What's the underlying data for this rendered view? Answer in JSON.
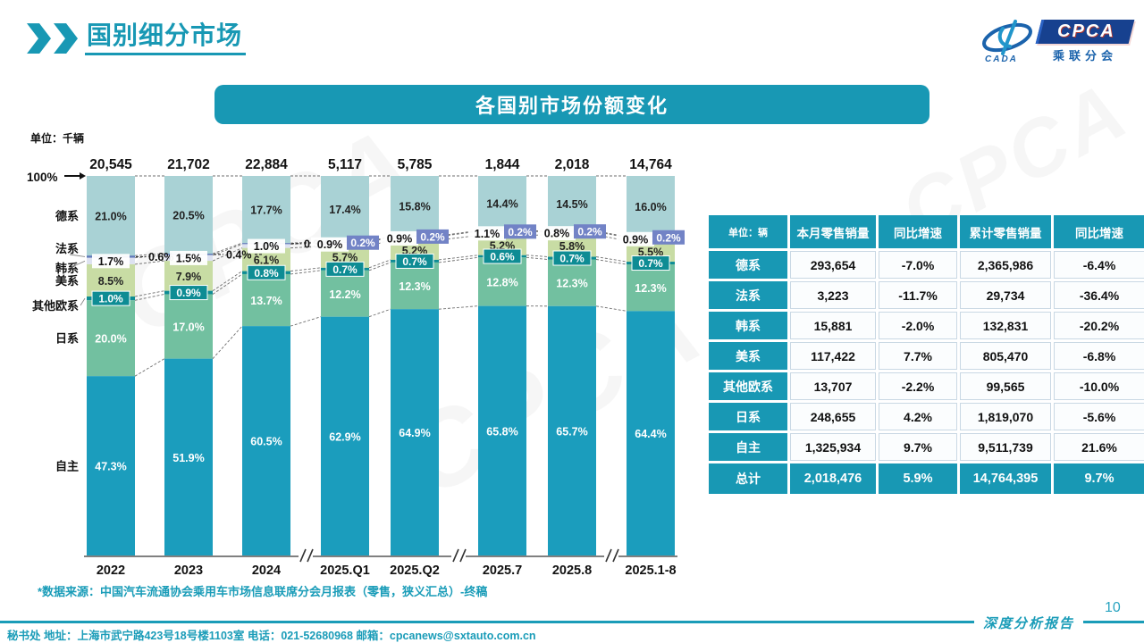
{
  "page": {
    "title": "国别细分市场",
    "page_number": "10",
    "source_note": "*数据来源：中国汽车流通协会乘用车市场信息联席分会月报表（零售，狭义汇总）-终稿",
    "footer_report_label": "深度分析报告",
    "footer_contact": "秘书处  地址：上海市武宁路423号18号楼1103室 电话：021-52680968  邮箱：cpcanews@sxtauto.com.cn"
  },
  "logo": {
    "cpca": "CPCA",
    "cada": "CADA",
    "subtitle": "乘联分会"
  },
  "banner": {
    "title": "各国别市场份额变化"
  },
  "chart_data": {
    "type": "bar",
    "stacked": true,
    "unit_label": "单位：千辆",
    "axis_top_label": "100%",
    "categories": [
      "2022",
      "2023",
      "2024",
      "2025.Q1",
      "2025.Q2",
      "2025.7",
      "2025.8",
      "2025.1-8"
    ],
    "totals": [
      "20,545",
      "21,702",
      "22,884",
      "5,117",
      "5,785",
      "1,844",
      "2,018",
      "14,764"
    ],
    "series": [
      {
        "name": "德系",
        "color": "#A9D2D5",
        "label_style": "plain-dark",
        "values": [
          21.0,
          20.5,
          17.7,
          17.4,
          15.8,
          14.4,
          14.5,
          16.0
        ]
      },
      {
        "name": "法系",
        "color": "#5F7AB8",
        "label_style": "callout",
        "highlight_color": "#7283C6",
        "values": [
          0.6,
          0.4,
          0.3,
          0.2,
          0.2,
          0.2,
          0.2,
          0.2
        ]
      },
      {
        "name": "韩系",
        "color": "#DDE2F1",
        "label_style": "box-white",
        "values": [
          1.7,
          1.5,
          1.0,
          0.9,
          0.9,
          1.1,
          0.8,
          0.9
        ]
      },
      {
        "name": "美系",
        "color": "#C8DCA4",
        "label_style": "plain-dark",
        "values": [
          8.5,
          7.9,
          6.1,
          5.7,
          5.2,
          5.2,
          5.8,
          5.5
        ]
      },
      {
        "name": "其他欧系",
        "color": "#0E8C94",
        "label_style": "box-teal",
        "values": [
          1.0,
          0.9,
          0.8,
          0.7,
          0.7,
          0.6,
          0.7,
          0.7
        ]
      },
      {
        "name": "日系",
        "color": "#72C0A0",
        "label_style": "plain-light",
        "values": [
          20.0,
          17.0,
          13.7,
          12.2,
          12.3,
          12.8,
          12.3,
          12.3
        ]
      },
      {
        "name": "自主",
        "color": "#1B9DBD",
        "label_style": "plain-light",
        "values": [
          47.3,
          51.9,
          60.5,
          62.9,
          64.9,
          65.8,
          65.7,
          64.4
        ]
      }
    ],
    "ylim": [
      0,
      100
    ],
    "grid": false,
    "legend_position": "left-axis",
    "axis_breaks_after": [
      "2024",
      "2025.Q2",
      "2025.8"
    ]
  },
  "table": {
    "unit_header": "单位：辆",
    "headers": [
      "单位：辆",
      "本月零售销量",
      "同比增速",
      "累计零售销量",
      "同比增速"
    ],
    "rows": [
      [
        "德系",
        "293,654",
        "-7.0%",
        "2,365,986",
        "-6.4%"
      ],
      [
        "法系",
        "3,223",
        "-11.7%",
        "29,734",
        "-36.4%"
      ],
      [
        "韩系",
        "15,881",
        "-2.0%",
        "132,831",
        "-20.2%"
      ],
      [
        "美系",
        "117,422",
        "7.7%",
        "805,470",
        "-6.8%"
      ],
      [
        "其他欧系",
        "13,707",
        "-2.2%",
        "99,565",
        "-10.0%"
      ],
      [
        "日系",
        "248,655",
        "4.2%",
        "1,819,070",
        "-5.6%"
      ],
      [
        "自主",
        "1,325,934",
        "9.7%",
        "9,511,739",
        "21.6%"
      ]
    ],
    "total_row": [
      "总计",
      "2,018,476",
      "5.9%",
      "14,764,395",
      "9.7%"
    ]
  },
  "colors": {
    "accent_teal": "#1898B4",
    "axis_gray": "#808080",
    "highlight_blue": "#7283C6",
    "box_teal": "#0E8C94"
  }
}
